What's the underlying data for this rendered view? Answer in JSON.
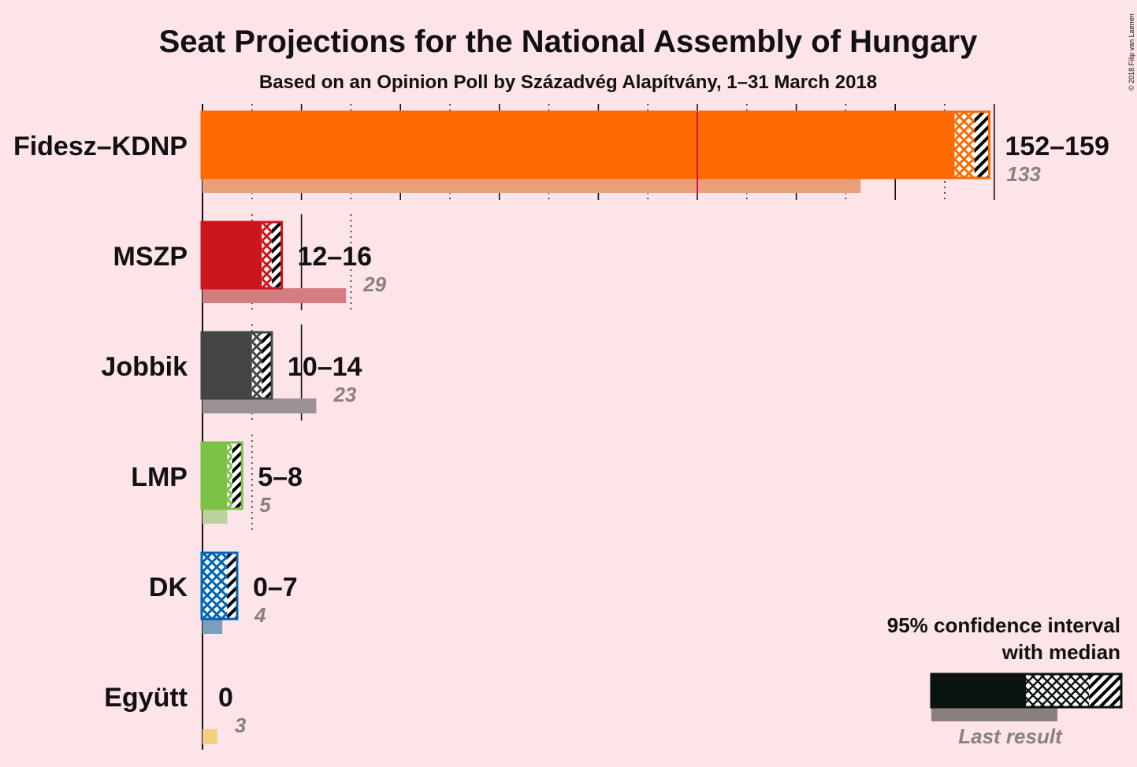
{
  "title": "Seat Projections for the National Assembly of Hungary",
  "subtitle": "Based on an Opinion Poll by Századvég Alapítvány, 1–31 March 2018",
  "copyright": "© 2018 Filip van Laenen",
  "legend": {
    "line1": "95% confidence interval",
    "line2": "with median",
    "last_result": "Last result",
    "colors": {
      "fill": "#0c1410",
      "last": "#8a8080"
    }
  },
  "chart_data": {
    "type": "bar",
    "orientation": "horizontal",
    "xlim": [
      0,
      160
    ],
    "majority_line": 100,
    "parties": [
      {
        "name": "Fidesz–KDNP",
        "low": 152,
        "median": 156,
        "high": 159,
        "label": "152–159",
        "last": 133,
        "last_label": "133",
        "color": "#ff6a00",
        "last_color": "#eaa07a"
      },
      {
        "name": "MSZP",
        "low": 12,
        "median": 14,
        "high": 16,
        "label": "12–16",
        "last": 29,
        "last_label": "29",
        "color": "#cc161b",
        "last_color": "#d47d80"
      },
      {
        "name": "Jobbik",
        "low": 10,
        "median": 12,
        "high": 14,
        "label": "10–14",
        "last": 23,
        "last_label": "23",
        "color": "#444444",
        "last_color": "#9b9393"
      },
      {
        "name": "LMP",
        "low": 5,
        "median": 6,
        "high": 8,
        "label": "5–8",
        "last": 5,
        "last_label": "5",
        "color": "#7bc143",
        "last_color": "#bcd19c"
      },
      {
        "name": "DK",
        "low": 0,
        "median": 5,
        "high": 7,
        "label": "0–7",
        "last": 4,
        "last_label": "4",
        "color": "#0065b4",
        "last_color": "#7b9dc0"
      },
      {
        "name": "Együtt",
        "low": 0,
        "median": 0,
        "high": 0,
        "label": "0",
        "last": 3,
        "last_label": "3",
        "color": "#e9b730",
        "last_color": "#f2d07e"
      }
    ]
  }
}
